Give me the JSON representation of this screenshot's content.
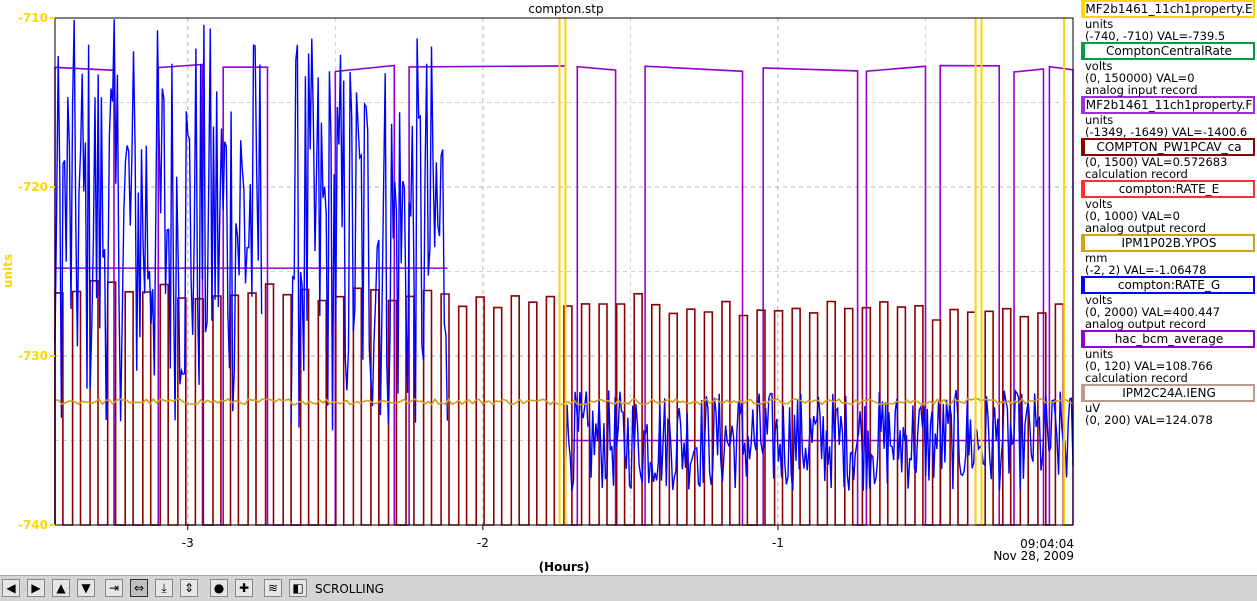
{
  "window": {
    "title": "compton.stp"
  },
  "chart_data": {
    "type": "line",
    "title": "compton.stp",
    "xlabel": "(Hours)",
    "ylabel": "units",
    "xlim": [
      -3.45,
      0
    ],
    "ylim": [
      -740,
      -710
    ],
    "yticks": [
      -710,
      -720,
      -730,
      -740
    ],
    "xticks": [
      -3,
      -2,
      -1
    ],
    "end_time": "09:04:04",
    "end_date": "Nov 28, 2009",
    "grid": true,
    "axis_color": "#ffd700",
    "series": [
      {
        "name": "hac_bcm_average",
        "color": "#9400d3",
        "style": "pulse",
        "low": -740,
        "high": -713,
        "pulses": [
          [
            -3.45,
            -3.25
          ],
          [
            -3.1,
            -2.95
          ],
          [
            -2.88,
            -2.73
          ],
          [
            -2.5,
            -2.3
          ],
          [
            -2.25,
            -1.72
          ],
          [
            -1.68,
            -1.55
          ],
          [
            -1.45,
            -1.12
          ],
          [
            -1.05,
            -0.73
          ],
          [
            -0.7,
            -0.5
          ],
          [
            -0.45,
            -0.25
          ],
          [
            -0.2,
            -0.1
          ],
          [
            -0.08,
            0
          ]
        ],
        "segments": [
          {
            "x": [
              -3.45,
              -2.6
            ],
            "y": -724.8
          },
          {
            "x": [
              -2.6,
              -2.12
            ],
            "y": -724.8
          },
          {
            "x": [
              -1.7,
              -0.1
            ],
            "y": -735
          }
        ]
      },
      {
        "name": "COMPTON_PW1PCAV_ca",
        "color": "#8b0000",
        "style": "square",
        "low": -740,
        "level_start": -726,
        "level_end": -727.5,
        "cycles": 58
      },
      {
        "name": "compton:RATE_G",
        "color": "#0000ff",
        "style": "noise",
        "blocks": [
          {
            "x": [
              -3.45,
              -2.75
            ],
            "center": -722,
            "amp": 12
          },
          {
            "x": [
              -2.65,
              -2.12
            ],
            "center": -723,
            "amp": 12
          },
          {
            "x": [
              -1.72,
              0
            ],
            "center": -735,
            "amp": 3
          }
        ]
      },
      {
        "name": "IPM1P02B.YPOS",
        "color": "#d59a20",
        "style": "flat",
        "y": -732.7,
        "dips": [
          [
            -3.45,
            -3.35
          ],
          [
            -2.7,
            -2.62
          ]
        ]
      },
      {
        "name": "MF2b1461_11ch1property.E",
        "color": "#ffd200",
        "style": "spikes",
        "x": [
          -1.74,
          -1.72,
          -0.33,
          -0.31,
          -0.03
        ]
      }
    ]
  },
  "legend": [
    {
      "name": "MF2b1461_11ch1property.E",
      "color": "#ffd700",
      "lines": [
        "units",
        "(-740, -710) VAL=-739.5"
      ]
    },
    {
      "name": "ComptonCentralRate",
      "color": "#00a040",
      "lines": [
        "volts",
        "(0, 150000) VAL=0",
        "analog input record"
      ]
    },
    {
      "name": "MF2b1461_11ch1property.F",
      "color": "#9b30d9",
      "lines": [
        "units",
        "(-1349, -1649) VAL=-1400.6"
      ]
    },
    {
      "name": "COMPTON_PW1PCAV_ca",
      "color": "#8b0000",
      "lines": [
        "(0, 1500) VAL=0.572683",
        "calculation record"
      ]
    },
    {
      "name": "compton:RATE_E",
      "color": "#ff3030",
      "lines": [
        "volts",
        "(0, 1000) VAL=0",
        "analog output record"
      ]
    },
    {
      "name": "IPM1P02B.YPOS",
      "color": "#d4a017",
      "lines": [
        "mm",
        "(-2, 2) VAL=-1.06478"
      ]
    },
    {
      "name": "compton:RATE_G",
      "color": "#0000ff",
      "lines": [
        "volts",
        "(0, 2000) VAL=400.447",
        "analog output record"
      ]
    },
    {
      "name": "hac_bcm_average",
      "color": "#9400d3",
      "lines": [
        "units",
        "(0, 120) VAL=108.766",
        "calculation record"
      ]
    },
    {
      "name": "IPM2C24A.IENG",
      "color": "#bc9a8f",
      "lines": [
        "uV",
        "(0, 200) VAL=124.078"
      ]
    }
  ],
  "toolbar": {
    "status": "SCROLLING",
    "buttons": [
      {
        "name": "scroll-left-button",
        "glyph": "◀"
      },
      {
        "name": "scroll-right-button",
        "glyph": "▶"
      },
      {
        "name": "scroll-up-button",
        "glyph": "▲"
      },
      {
        "name": "scroll-down-button",
        "glyph": "▼"
      },
      {
        "name": "zoom-in-horizontal-button",
        "glyph": "⇥"
      },
      {
        "name": "zoom-out-horizontal-button",
        "glyph": "⇔"
      },
      {
        "name": "zoom-in-vertical-button",
        "glyph": "⤓"
      },
      {
        "name": "zoom-out-vertical-button",
        "glyph": "⇕"
      },
      {
        "name": "reset-button",
        "glyph": "●"
      },
      {
        "name": "crosshair-button",
        "glyph": "✚"
      },
      {
        "name": "autoscale-button",
        "glyph": "≋"
      },
      {
        "name": "scroll-mode-button",
        "glyph": "◧"
      }
    ]
  }
}
